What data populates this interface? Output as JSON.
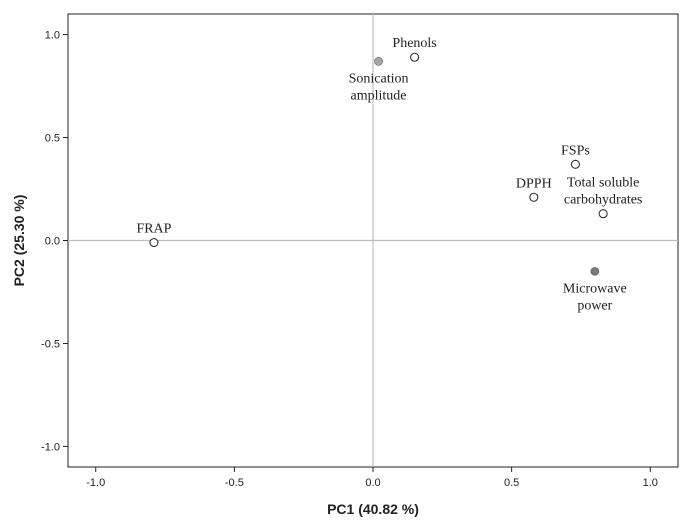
{
  "chart_data": {
    "type": "scatter",
    "title": "",
    "xlabel": "PC1 (40.82 %)",
    "ylabel": "PC2 (25.30 %)",
    "xlim": [
      -1.1,
      1.1
    ],
    "ylim": [
      -1.1,
      1.1
    ],
    "xticks": [
      -1.0,
      -0.5,
      0.0,
      0.5,
      1.0
    ],
    "yticks": [
      -1.0,
      -0.5,
      0.0,
      0.5,
      1.0
    ],
    "xtick_labels": [
      "-1.0",
      "-0.5",
      "0.0",
      "0.5",
      "1.0"
    ],
    "ytick_labels": [
      "-1.0",
      "-0.5",
      "0.0",
      "0.5",
      "1.0"
    ],
    "grid": false,
    "reference_lines": {
      "x0": true,
      "y0": true,
      "color": "#bdbdbd"
    },
    "points": [
      {
        "id": "phenols",
        "label": [
          "Phenols"
        ],
        "x": 0.15,
        "y": 0.89,
        "marker": "hollow",
        "label_pos": "above"
      },
      {
        "id": "sonication-amplitude",
        "label": [
          "Sonication",
          "amplitude"
        ],
        "x": 0.02,
        "y": 0.87,
        "marker": "filled",
        "color": "#a6a6a6",
        "label_pos": "below"
      },
      {
        "id": "fsps",
        "label": [
          "FSPs"
        ],
        "x": 0.73,
        "y": 0.37,
        "marker": "hollow",
        "label_pos": "above"
      },
      {
        "id": "dpph",
        "label": [
          "DPPH"
        ],
        "x": 0.58,
        "y": 0.21,
        "marker": "hollow",
        "label_pos": "above"
      },
      {
        "id": "total-soluble-carbohydrates",
        "label": [
          "Total soluble",
          "carbohydrates"
        ],
        "x": 0.83,
        "y": 0.13,
        "marker": "hollow",
        "label_pos": "above"
      },
      {
        "id": "frap",
        "label": [
          "FRAP"
        ],
        "x": -0.79,
        "y": -0.01,
        "marker": "hollow",
        "label_pos": "above"
      },
      {
        "id": "microwave-power",
        "label": [
          "Microwave",
          "power"
        ],
        "x": 0.8,
        "y": -0.15,
        "marker": "filled",
        "color": "#7a7a7a",
        "label_pos": "below"
      }
    ]
  }
}
